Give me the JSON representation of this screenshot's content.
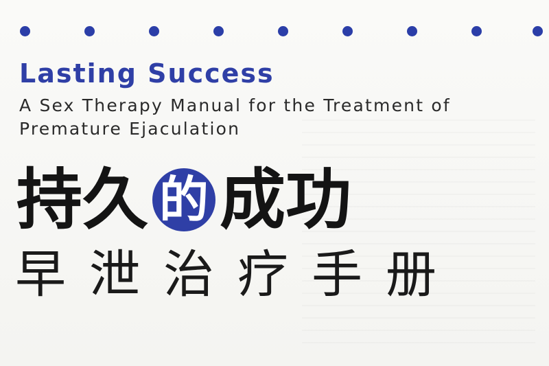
{
  "cover": {
    "english_title": "Lasting Success",
    "english_subtitle_line1": "A Sex Therapy Manual for the Treatment of",
    "english_subtitle_line2": "Premature Ejaculation",
    "chinese_title_chars": [
      "持",
      "久",
      "的",
      "成",
      "功"
    ],
    "chinese_subtitle": "早泄治疗手册"
  },
  "colors": {
    "accent_blue": "#2f3fa6",
    "text_black": "#141414",
    "background": "#f7f7f5"
  },
  "decor": {
    "dot_count": 9
  }
}
